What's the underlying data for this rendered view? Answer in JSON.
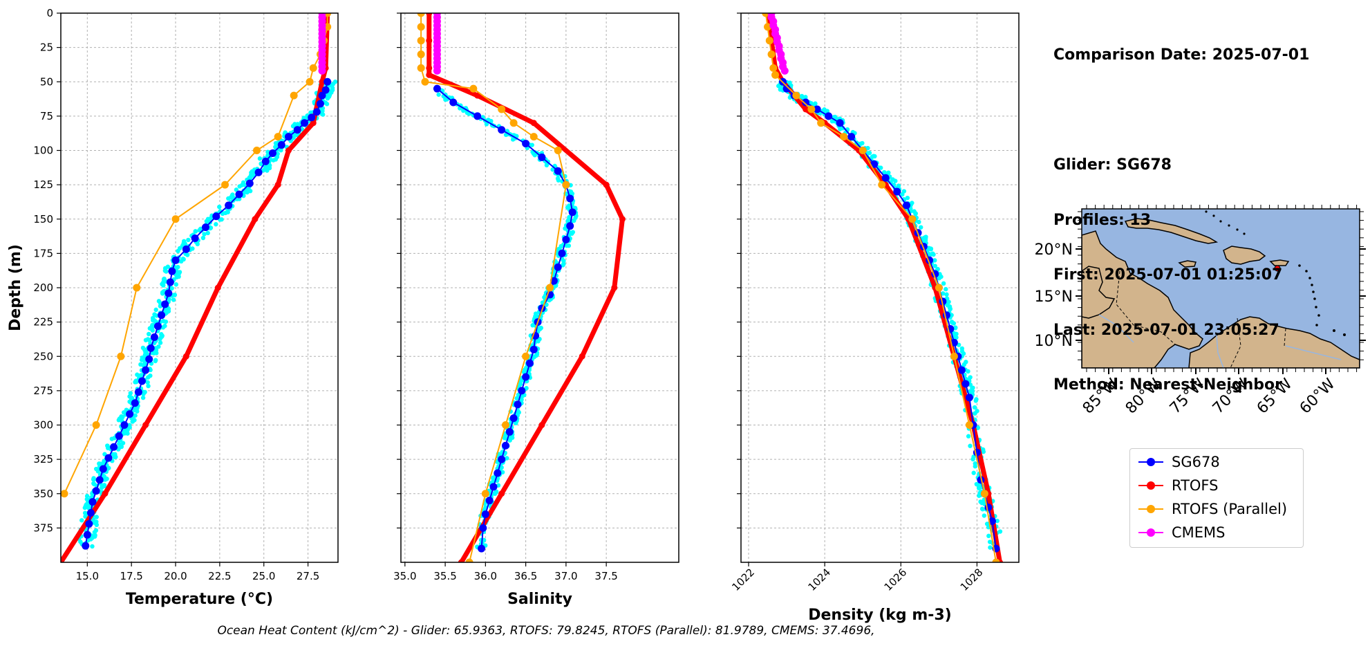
{
  "chart_data": [
    {
      "type": "line",
      "name": "temperature-profile",
      "xlabel": "Temperature (°C)",
      "ylabel": "Depth (m)",
      "xlim": [
        13.5,
        29.2
      ],
      "ylim": [
        400,
        0
      ],
      "y_inverted": true,
      "xticks": [
        15.0,
        17.5,
        20.0,
        22.5,
        25.0,
        27.5
      ],
      "xtick_labels": [
        "15.0",
        "17.5",
        "20.0",
        "22.5",
        "25.0",
        "27.5"
      ],
      "yticks": [
        0,
        25,
        50,
        75,
        100,
        125,
        150,
        175,
        200,
        225,
        250,
        275,
        300,
        325,
        350,
        375
      ],
      "ytick_labels": [
        "0",
        "25",
        "50",
        "75",
        "100",
        "125",
        "150",
        "175",
        "200",
        "225",
        "250",
        "275",
        "300",
        "325",
        "350",
        "375"
      ],
      "grid": true,
      "series": [
        {
          "name": "SG678",
          "color": "#0000ff",
          "marker": "o",
          "x": [
            28.6,
            28.5,
            28.3,
            28.2,
            28.0,
            27.7,
            27.3,
            26.9,
            26.4,
            26.0,
            25.5,
            25.1,
            24.7,
            24.2,
            23.6,
            23.0,
            22.3,
            21.7,
            21.1,
            20.6,
            20.0,
            19.8,
            19.7,
            19.6,
            19.4,
            19.2,
            19.0,
            18.8,
            18.6,
            18.5,
            18.3,
            18.1,
            17.9,
            17.7,
            17.4,
            17.1,
            16.8,
            16.5,
            16.2,
            15.9,
            15.7,
            15.5,
            15.3,
            15.2,
            15.1,
            15.0,
            14.9
          ],
          "y": [
            50,
            56,
            60,
            66,
            72,
            76,
            80,
            85,
            90,
            96,
            102,
            108,
            116,
            124,
            132,
            140,
            148,
            156,
            164,
            172,
            180,
            188,
            196,
            204,
            212,
            220,
            228,
            236,
            244,
            252,
            260,
            268,
            276,
            284,
            292,
            300,
            308,
            316,
            324,
            332,
            340,
            348,
            356,
            364,
            372,
            380,
            388
          ]
        },
        {
          "name": "RTOFS",
          "color": "#ff0000",
          "marker": "o",
          "x": [
            28.6,
            28.5,
            28.3,
            27.8,
            26.4,
            25.8,
            24.5,
            22.4,
            20.6,
            18.3,
            16.0,
            13.5
          ],
          "y": [
            0,
            40,
            50,
            80,
            100,
            125,
            150,
            200,
            250,
            300,
            350,
            400
          ]
        },
        {
          "name": "RTOFS (Parallel)",
          "color": "#ffa500",
          "marker": "o",
          "x": [
            28.6,
            28.6,
            28.4,
            28.2,
            27.8,
            27.6,
            26.7,
            25.8,
            24.6,
            22.8,
            20.0,
            17.8,
            16.9,
            15.5,
            13.7
          ],
          "y": [
            0,
            10,
            20,
            30,
            40,
            50,
            60,
            90,
            100,
            125,
            150,
            200,
            250,
            300,
            350
          ]
        },
        {
          "name": "CMEMS",
          "color": "#ff00ff",
          "marker": "o",
          "x": [
            28.3,
            28.3,
            28.3,
            28.3,
            28.3,
            28.3,
            28.3,
            28.3,
            28.3,
            28.3,
            28.3,
            28.3,
            28.3,
            28.3,
            28.3
          ],
          "y": [
            0,
            3,
            6,
            9,
            12,
            15,
            18,
            21,
            24,
            27,
            30,
            33,
            36,
            39,
            42
          ]
        }
      ],
      "scatter_color": "#00ffff"
    },
    {
      "type": "line",
      "name": "salinity-profile",
      "xlabel": "Salinity",
      "xlim": [
        34.95,
        38.4
      ],
      "ylim": [
        400,
        0
      ],
      "y_inverted": true,
      "xticks": [
        35.0,
        35.5,
        36.0,
        36.5,
        37.0,
        37.5
      ],
      "xtick_labels": [
        "35.0",
        "35.5",
        "36.0",
        "36.5",
        "37.0",
        "37.5"
      ],
      "grid": true,
      "series": [
        {
          "name": "SG678",
          "color": "#0000ff",
          "marker": "o",
          "x": [
            35.4,
            35.6,
            35.9,
            36.2,
            36.5,
            36.7,
            36.9,
            37.0,
            37.05,
            37.08,
            37.05,
            37.0,
            36.95,
            36.9,
            36.85,
            36.8,
            36.7,
            36.65,
            36.62,
            36.6,
            36.55,
            36.5,
            36.45,
            36.4,
            36.35,
            36.3,
            36.25,
            36.2,
            36.15,
            36.1,
            36.05,
            36.0,
            35.97,
            35.95
          ],
          "y": [
            55,
            65,
            75,
            85,
            95,
            105,
            115,
            125,
            135,
            145,
            155,
            165,
            175,
            185,
            195,
            205,
            215,
            225,
            235,
            245,
            255,
            265,
            275,
            285,
            295,
            305,
            315,
            325,
            335,
            345,
            355,
            365,
            375,
            390
          ]
        },
        {
          "name": "RTOFS",
          "color": "#ff0000",
          "marker": "o",
          "x": [
            35.3,
            35.3,
            35.3,
            35.3,
            35.9,
            36.6,
            37.5,
            37.7,
            37.6,
            37.2,
            36.7,
            36.2,
            35.7
          ],
          "y": [
            0,
            20,
            40,
            45,
            60,
            80,
            125,
            150,
            200,
            250,
            300,
            350,
            400
          ]
        },
        {
          "name": "RTOFS (Parallel)",
          "color": "#ffa500",
          "marker": "o",
          "x": [
            35.2,
            35.2,
            35.2,
            35.2,
            35.2,
            35.25,
            35.85,
            36.2,
            36.35,
            36.6,
            36.9,
            37.0,
            36.8,
            36.5,
            36.25,
            36.0,
            35.8
          ],
          "y": [
            0,
            10,
            20,
            30,
            40,
            50,
            55,
            70,
            80,
            90,
            100,
            125,
            200,
            250,
            300,
            350,
            400
          ]
        },
        {
          "name": "CMEMS",
          "color": "#ff00ff",
          "marker": "o",
          "x": [
            35.4,
            35.4,
            35.4,
            35.4,
            35.4,
            35.4,
            35.4,
            35.4,
            35.4,
            35.4,
            35.4,
            35.4,
            35.4,
            35.4,
            35.4
          ],
          "y": [
            0,
            3,
            6,
            9,
            12,
            15,
            18,
            21,
            24,
            27,
            30,
            33,
            36,
            39,
            42
          ]
        }
      ],
      "scatter_color": "#00ffff"
    },
    {
      "type": "line",
      "name": "density-profile",
      "xlabel": "Density (kg m-3)",
      "xlim": [
        1021.8,
        1029.1
      ],
      "ylim": [
        400,
        0
      ],
      "y_inverted": true,
      "xticks": [
        1022,
        1024,
        1026,
        1028
      ],
      "xtick_labels": [
        "1022",
        "1024",
        "1026",
        "1028"
      ],
      "grid": true,
      "series": [
        {
          "name": "SG678",
          "color": "#0000ff",
          "marker": "o",
          "x": [
            22.9,
            23.0,
            23.2,
            23.5,
            23.8,
            24.1,
            24.4,
            24.7,
            25.0,
            25.3,
            25.6,
            25.9,
            26.15,
            26.3,
            26.45,
            26.6,
            26.75,
            26.9,
            27.0,
            27.1,
            27.2,
            27.3,
            27.4,
            27.5,
            27.6,
            27.7,
            27.8,
            27.9,
            28.0,
            28.1,
            28.2,
            28.3,
            28.4,
            28.5
          ],
          "y": [
            50,
            55,
            60,
            65,
            70,
            75,
            80,
            90,
            100,
            110,
            120,
            130,
            140,
            150,
            160,
            170,
            180,
            190,
            200,
            210,
            220,
            230,
            240,
            250,
            260,
            270,
            280,
            300,
            320,
            340,
            350,
            360,
            370,
            390
          ]
        },
        {
          "name": "RTOFS",
          "color": "#ff0000",
          "marker": "o",
          "x": [
            22.5,
            22.6,
            22.7,
            22.9,
            23.5,
            24.0,
            24.9,
            25.6,
            26.2,
            26.9,
            27.4,
            27.9,
            28.3,
            28.6
          ],
          "y": [
            0,
            20,
            40,
            50,
            70,
            80,
            100,
            125,
            150,
            200,
            250,
            300,
            350,
            400
          ]
        },
        {
          "name": "RTOFS (Parallel)",
          "color": "#ffa500",
          "marker": "o",
          "x": [
            22.45,
            22.5,
            22.55,
            22.6,
            22.65,
            22.7,
            23.25,
            23.65,
            23.9,
            24.5,
            25.0,
            25.5,
            26.3,
            27.0,
            27.4,
            27.8,
            28.2,
            28.5
          ],
          "y": [
            0,
            10,
            20,
            30,
            40,
            45,
            60,
            70,
            80,
            90,
            100,
            125,
            150,
            200,
            250,
            300,
            350,
            400
          ]
        },
        {
          "name": "CMEMS",
          "color": "#ff00ff",
          "marker": "o",
          "x": [
            22.6,
            22.6,
            22.65,
            22.65,
            22.7,
            22.7,
            22.75,
            22.75,
            22.8,
            22.8,
            22.85,
            22.85,
            22.9,
            22.9,
            22.95
          ],
          "y": [
            0,
            3,
            6,
            9,
            12,
            15,
            18,
            21,
            24,
            27,
            30,
            33,
            36,
            39,
            42
          ]
        }
      ],
      "scatter_color": "#00ffff"
    }
  ],
  "info": {
    "comparison_date": "Comparison Date: 2025-07-01",
    "glider": "Glider: SG678",
    "profiles": "Profiles: 13",
    "first": "First: 2025-07-01 01:25:07",
    "last": "Last: 2025-07-01 23:05:27",
    "method": "Method: Nearest-Neighbor"
  },
  "map": {
    "lat_labels": [
      "20°N",
      "15°N",
      "10°N"
    ],
    "lon_labels": [
      "85°W",
      "80°W",
      "75°W",
      "70°W",
      "65°W",
      "60°W"
    ],
    "ocean_color": "#97b6e1",
    "land_color": "#d2b48c",
    "glider_marker_color": "#ff0000"
  },
  "legend": [
    {
      "label": "SG678",
      "color": "#0000ff"
    },
    {
      "label": "RTOFS",
      "color": "#ff0000"
    },
    {
      "label": "RTOFS (Parallel)",
      "color": "#ffa500"
    },
    {
      "label": "CMEMS",
      "color": "#ff00ff"
    }
  ],
  "footer": "Ocean Heat Content (kJ/cm^2) - Glider: 65.9363,  RTOFS: 79.8245,  RTOFS (Parallel): 81.9789,  CMEMS: 37.4696,"
}
